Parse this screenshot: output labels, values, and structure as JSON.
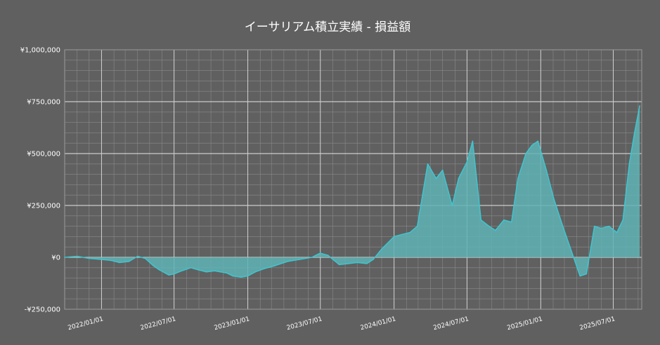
{
  "chart_data": {
    "type": "area",
    "title": "イーサリアム積立実績 - 損益額",
    "xlabel": "",
    "ylabel": "",
    "ylim": [
      -250000,
      1000000
    ],
    "xlim": [
      "2021-10-01",
      "2025-09-10"
    ],
    "y_ticks": [
      -250000,
      0,
      250000,
      500000,
      750000,
      1000000
    ],
    "y_tick_labels": [
      "-¥250,000",
      "¥0",
      "¥250,000",
      "¥500,000",
      "¥750,000",
      "¥1,000,000"
    ],
    "x_ticks": [
      "2022-01-01",
      "2022-07-01",
      "2023-01-01",
      "2023-07-01",
      "2024-01-01",
      "2024-07-01",
      "2025-01-01",
      "2025-07-01"
    ],
    "x_tick_labels": [
      "2022/01/01",
      "2022/07/01",
      "2023/01/01",
      "2023/07/01",
      "2024/01/01",
      "2024/07/01",
      "2025/01/01",
      "2025/07/01"
    ],
    "grid": true,
    "colors": {
      "background": "#606060",
      "grid": "#8a8a8a",
      "line": "#3ec6d0",
      "fill": "#5fb3b5"
    },
    "series": [
      {
        "x": [
          "2021-10-01",
          "2021-11-01",
          "2021-12-01",
          "2022-01-01",
          "2022-01-25",
          "2022-02-15",
          "2022-03-10",
          "2022-04-01",
          "2022-04-20",
          "2022-05-10",
          "2022-05-25",
          "2022-06-18",
          "2022-07-01",
          "2022-07-20",
          "2022-08-12",
          "2022-08-30",
          "2022-09-20",
          "2022-10-10",
          "2022-11-09",
          "2022-11-25",
          "2022-12-15",
          "2023-01-01",
          "2023-01-20",
          "2023-02-10",
          "2023-03-10",
          "2023-04-10",
          "2023-05-10",
          "2023-06-10",
          "2023-06-25",
          "2023-07-01",
          "2023-07-20",
          "2023-08-17",
          "2023-09-10",
          "2023-10-01",
          "2023-10-25",
          "2023-11-10",
          "2023-12-01",
          "2024-01-01",
          "2024-01-20",
          "2024-02-10",
          "2024-02-28",
          "2024-03-12",
          "2024-03-25",
          "2024-04-15",
          "2024-05-01",
          "2024-05-25",
          "2024-06-10",
          "2024-07-01",
          "2024-07-15",
          "2024-08-05",
          "2024-08-25",
          "2024-09-10",
          "2024-10-01",
          "2024-10-20",
          "2024-11-05",
          "2024-11-25",
          "2024-12-10",
          "2024-12-25",
          "2025-01-15",
          "2025-02-03",
          "2025-02-25",
          "2025-03-15",
          "2025-04-09",
          "2025-04-25",
          "2025-05-15",
          "2025-06-01",
          "2025-06-20",
          "2025-07-10",
          "2025-07-25",
          "2025-08-10",
          "2025-08-23",
          "2025-09-05"
        ],
        "values": [
          0,
          5000,
          -5000,
          -10000,
          -15000,
          -25000,
          -20000,
          5000,
          -5000,
          -40000,
          -60000,
          -85000,
          -80000,
          -65000,
          -50000,
          -60000,
          -70000,
          -65000,
          -75000,
          -90000,
          -95000,
          -90000,
          -70000,
          -55000,
          -40000,
          -20000,
          -10000,
          0,
          15000,
          20000,
          10000,
          -35000,
          -30000,
          -25000,
          -30000,
          -10000,
          40000,
          100000,
          110000,
          120000,
          150000,
          300000,
          450000,
          380000,
          420000,
          250000,
          380000,
          460000,
          560000,
          180000,
          150000,
          130000,
          180000,
          170000,
          380000,
          500000,
          540000,
          560000,
          420000,
          280000,
          150000,
          50000,
          -90000,
          -80000,
          150000,
          140000,
          150000,
          120000,
          180000,
          450000,
          600000,
          730000
        ]
      }
    ]
  }
}
